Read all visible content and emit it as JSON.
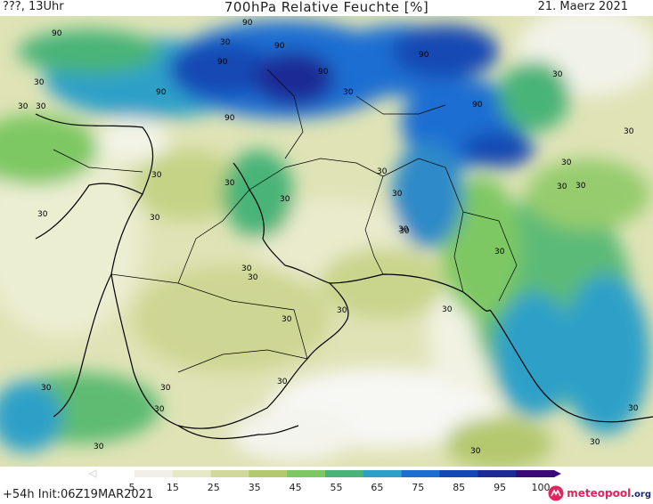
{
  "header": {
    "left": "???, 13Uhr",
    "title": "700hPa Relative Feuchte [%]",
    "date": "21. Maerz 2021"
  },
  "footer": {
    "run": "+54h Init:06Z19MAR2021",
    "logo": "meteopool",
    "logo_tld": ".org"
  },
  "colorbar": {
    "labels": [
      "5",
      "15",
      "25",
      "35",
      "45",
      "55",
      "65",
      "75",
      "85",
      "95",
      "100"
    ],
    "colors": [
      "#ffffff",
      "#f0f0e6",
      "#e6e8c8",
      "#d2d89c",
      "#b4c86e",
      "#7ec864",
      "#4ab478",
      "#2ea0c8",
      "#1e6ed2",
      "#1448b4",
      "#1e2a96",
      "#3c0a78"
    ]
  },
  "map": {
    "contour_labels": [
      "90",
      "90",
      "90",
      "90",
      "90",
      "90",
      "90",
      "90",
      "90",
      "30",
      "30",
      "30",
      "30",
      "30",
      "30",
      "30",
      "30",
      "30",
      "30",
      "30",
      "30",
      "30",
      "30",
      "30",
      "30",
      "30",
      "30",
      "30",
      "30",
      "30",
      "30",
      "30",
      "30",
      "30",
      "30",
      "30",
      "30",
      "30",
      "30",
      "30",
      "30",
      "30"
    ]
  }
}
